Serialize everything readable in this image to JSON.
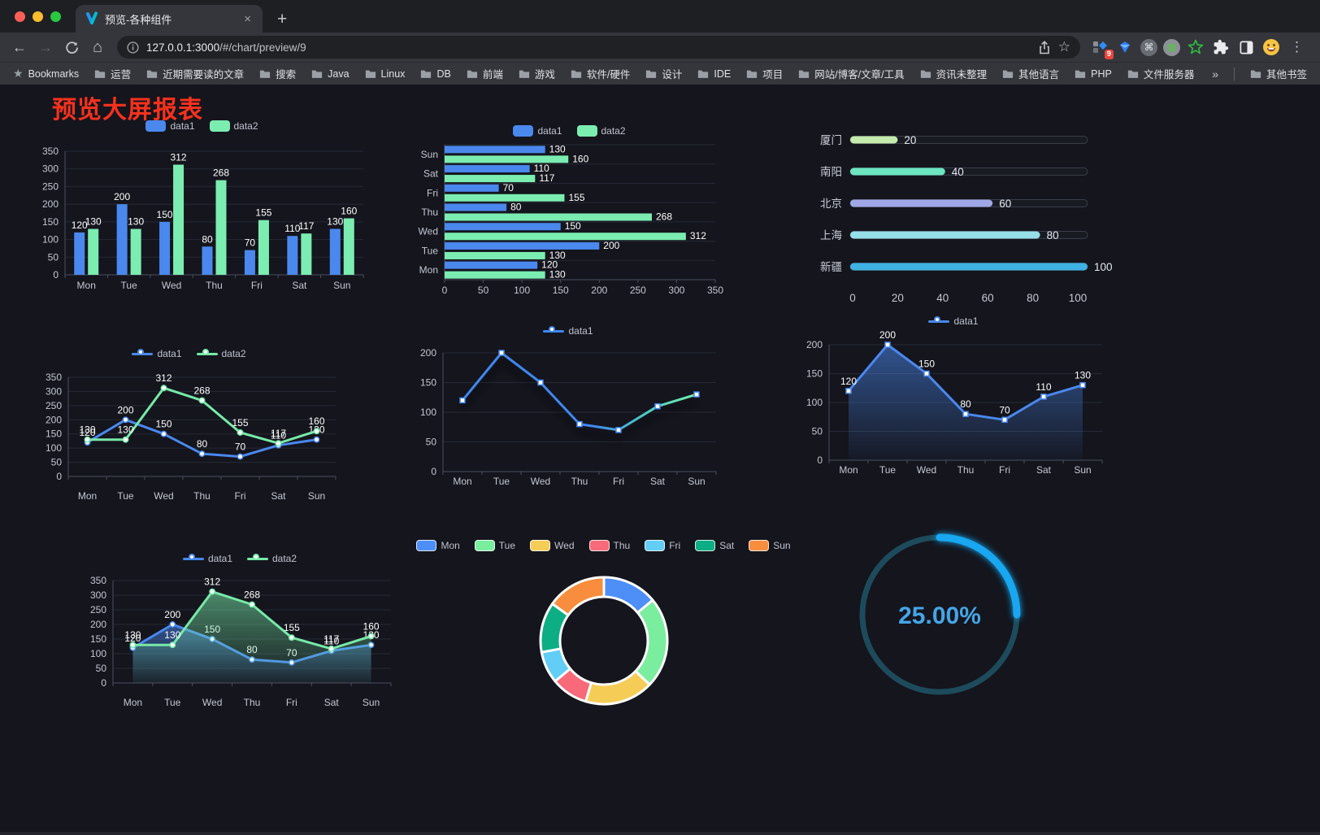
{
  "browser": {
    "tab": {
      "title": "预览-各种组件"
    },
    "address": {
      "url_host": "127.0.0.1:3000",
      "url_path": "/#/chart/preview/9"
    },
    "bookmarks_bar": {
      "star_label": "Bookmarks",
      "folders": [
        "运营",
        "近期需要读的文章",
        "搜索",
        "Java",
        "Linux",
        "DB",
        "前端",
        "游戏",
        "软件/硬件",
        "设计",
        "IDE",
        "项目",
        "网站/博客/文章/工具",
        "资讯未整理",
        "其他语言",
        "PHP",
        "文件服务器"
      ],
      "other_bookmarks": "其他书签"
    },
    "extensions_badge": "9"
  },
  "icons": {
    "back_arrow": "←",
    "forward_arrow": "→",
    "home": "⌂",
    "tab_close": "×",
    "new_tab": "+",
    "overflow_chevron": "»",
    "menu_kebab": "⋮",
    "star_outline": "☆",
    "bookmarks_star": "★",
    "command": "⌘"
  },
  "page": {
    "title": "预览大屏报表",
    "title_color": "#f7311d",
    "background": "#14151d"
  },
  "chart_data": [
    {
      "id": "bar-vertical",
      "type": "bar",
      "orientation": "vertical",
      "legend": [
        "data1",
        "data2"
      ],
      "legend_marker": "rect",
      "legend_position": "top",
      "categories": [
        "Mon",
        "Tue",
        "Wed",
        "Thu",
        "Fri",
        "Sat",
        "Sun"
      ],
      "series": [
        {
          "name": "data1",
          "color": "#4a88ee",
          "values": [
            120,
            200,
            150,
            80,
            70,
            110,
            130
          ]
        },
        {
          "name": "data2",
          "color": "#7bedb1",
          "values": [
            130,
            130,
            312,
            268,
            155,
            117,
            160
          ]
        }
      ],
      "ylim": [
        0,
        350
      ],
      "yticks": [
        0,
        50,
        100,
        150,
        200,
        250,
        300,
        350
      ],
      "value_labels": true,
      "grid": true
    },
    {
      "id": "bar-horizontal",
      "type": "bar",
      "orientation": "horizontal",
      "legend": [
        "data1",
        "data2"
      ],
      "legend_marker": "rect",
      "legend_position": "top",
      "categories": [
        "Mon",
        "Tue",
        "Wed",
        "Thu",
        "Fri",
        "Sat",
        "Sun"
      ],
      "category_display_order": "Sun at top, Mon at bottom",
      "series": [
        {
          "name": "data1",
          "color": "#4a88ee",
          "values": [
            120,
            200,
            150,
            80,
            70,
            110,
            130
          ]
        },
        {
          "name": "data2",
          "color": "#7bedb1",
          "values": [
            130,
            130,
            312,
            268,
            155,
            117,
            160
          ]
        }
      ],
      "xlim": [
        0,
        350
      ],
      "xticks": [
        0,
        50,
        100,
        150,
        200,
        250,
        300,
        350
      ],
      "value_labels": true,
      "grid": true
    },
    {
      "id": "progress-list",
      "type": "bar",
      "variant": "progress-pills",
      "items": [
        {
          "label": "厦门",
          "value": 20,
          "color": "#c4ebad"
        },
        {
          "label": "南阳",
          "value": 40,
          "color": "#6be6c1"
        },
        {
          "label": "北京",
          "value": 60,
          "color": "#a0a7e6"
        },
        {
          "label": "上海",
          "value": 80,
          "color": "#96dee8"
        },
        {
          "label": "新疆",
          "value": 100,
          "color": "#3fb1e3"
        }
      ],
      "xlim": [
        0,
        100
      ],
      "xticks": [
        0,
        20,
        40,
        60,
        80,
        100
      ],
      "value_labels": true
    },
    {
      "id": "line-two",
      "type": "line",
      "legend": [
        "data1",
        "data2"
      ],
      "legend_marker": "linedot",
      "legend_position": "top",
      "categories": [
        "Mon",
        "Tue",
        "Wed",
        "Thu",
        "Fri",
        "Sat",
        "Sun"
      ],
      "series": [
        {
          "name": "data1",
          "color": "#4a88ee",
          "values": [
            120,
            200,
            150,
            80,
            70,
            110,
            130
          ]
        },
        {
          "name": "data2",
          "color": "#77e9a8",
          "values": [
            130,
            130,
            312,
            268,
            155,
            117,
            160
          ]
        }
      ],
      "ylim": [
        0,
        350
      ],
      "yticks": [
        0,
        50,
        100,
        150,
        200,
        250,
        300,
        350
      ],
      "value_labels": true,
      "marker": "circle",
      "grid": true
    },
    {
      "id": "line-gradient",
      "type": "line",
      "legend": [
        "data1"
      ],
      "legend_marker": "linedot",
      "legend_position": "top",
      "categories": [
        "Mon",
        "Tue",
        "Wed",
        "Thu",
        "Fri",
        "Sat",
        "Sun"
      ],
      "series": [
        {
          "name": "data1",
          "gradient": [
            "#3f87f0",
            "#3f87f0",
            "#4fd0c0",
            "#74edae"
          ],
          "gradient_stops": [
            0,
            0.55,
            0.8,
            1
          ],
          "values": [
            120,
            200,
            150,
            80,
            70,
            110,
            130
          ]
        }
      ],
      "ylim": [
        0,
        200
      ],
      "yticks": [
        0,
        50,
        100,
        150,
        200
      ],
      "value_labels": false,
      "marker": "square",
      "shadow": true,
      "grid": true
    },
    {
      "id": "line-area",
      "type": "area",
      "legend": [
        "data1"
      ],
      "legend_marker": "linedot",
      "legend_position": "top",
      "categories": [
        "Mon",
        "Tue",
        "Wed",
        "Thu",
        "Fri",
        "Sat",
        "Sun"
      ],
      "series": [
        {
          "name": "data1",
          "color": "#4a88ee",
          "area": true,
          "values": [
            120,
            200,
            150,
            80,
            70,
            110,
            130
          ]
        }
      ],
      "ylim": [
        0,
        200
      ],
      "yticks": [
        0,
        50,
        100,
        150,
        200
      ],
      "value_labels": true,
      "marker": "square",
      "grid": true
    },
    {
      "id": "line-two-area",
      "type": "area",
      "legend": [
        "data1",
        "data2"
      ],
      "legend_marker": "linedot",
      "legend_position": "top",
      "categories": [
        "Mon",
        "Tue",
        "Wed",
        "Thu",
        "Fri",
        "Sat",
        "Sun"
      ],
      "series": [
        {
          "name": "data1",
          "color": "#4a88ee",
          "area": true,
          "values": [
            120,
            200,
            150,
            80,
            70,
            110,
            130
          ]
        },
        {
          "name": "data2",
          "color": "#77e9a8",
          "area": true,
          "values": [
            130,
            130,
            312,
            268,
            155,
            117,
            160
          ]
        }
      ],
      "ylim": [
        0,
        350
      ],
      "yticks": [
        0,
        50,
        100,
        150,
        200,
        250,
        300,
        350
      ],
      "value_labels": true,
      "marker": "circle",
      "grid": true
    },
    {
      "id": "donut",
      "type": "pie",
      "legend": [
        "Mon",
        "Tue",
        "Wed",
        "Thu",
        "Fri",
        "Sat",
        "Sun"
      ],
      "legend_marker": "rect-border",
      "legend_position": "top",
      "start_angle_deg": 0,
      "clockwise": true,
      "inner_radius_ratio": 0.69,
      "items": [
        {
          "label": "Mon",
          "value": 120,
          "color": "#4e8ef7"
        },
        {
          "label": "Tue",
          "value": 200,
          "color": "#7bed9f"
        },
        {
          "label": "Wed",
          "value": 150,
          "color": "#f5cd56"
        },
        {
          "label": "Thu",
          "value": 80,
          "color": "#f8697a"
        },
        {
          "label": "Fri",
          "value": 70,
          "color": "#62cdf5"
        },
        {
          "label": "Sat",
          "value": 110,
          "color": "#0eae84"
        },
        {
          "label": "Sun",
          "value": 130,
          "color": "#f78d3d"
        }
      ]
    },
    {
      "id": "gauge",
      "type": "gauge",
      "value": 25,
      "max": 100,
      "display": "25.00%",
      "track_color": "#1d4b5c",
      "progress_color": "#18a7f0",
      "text_color": "#45a5e6"
    }
  ]
}
